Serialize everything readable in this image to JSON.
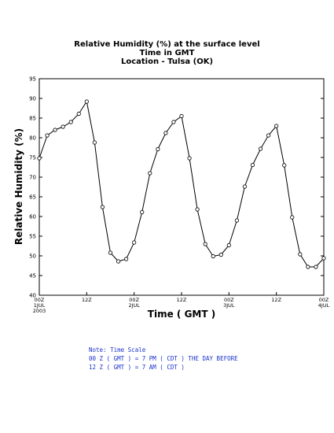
{
  "chart_data": {
    "type": "line",
    "title": "Relative Humidity (%) at the surface level",
    "subtitle": "Time in GMT",
    "location": "Location - Tulsa (OK)",
    "ylabel": "Relative Humidity (%)",
    "xlabel": "Time ( GMT )",
    "ylim": [
      40,
      95
    ],
    "yticks": [
      40,
      45,
      50,
      55,
      60,
      65,
      70,
      75,
      80,
      85,
      90,
      95
    ],
    "xlim_hours": [
      0,
      72
    ],
    "xticks": [
      {
        "hour": 0,
        "label": "00Z",
        "sub": "1JUL",
        "sub2": "2003"
      },
      {
        "hour": 12,
        "label": "12Z",
        "sub": "",
        "sub2": ""
      },
      {
        "hour": 24,
        "label": "00Z",
        "sub": "2JUL",
        "sub2": ""
      },
      {
        "hour": 36,
        "label": "12Z",
        "sub": "",
        "sub2": ""
      },
      {
        "hour": 48,
        "label": "00Z",
        "sub": "3JUL",
        "sub2": ""
      },
      {
        "hour": 60,
        "label": "12Z",
        "sub": "",
        "sub2": ""
      },
      {
        "hour": 72,
        "label": "00Z",
        "sub": "4JUL",
        "sub2": ""
      }
    ],
    "grid": false,
    "series": [
      {
        "x": [
          0,
          2,
          4,
          6,
          8,
          10,
          12,
          14,
          16,
          18,
          20,
          22,
          24,
          26,
          28,
          30,
          32,
          34,
          36,
          38,
          40,
          42,
          44,
          46,
          48,
          50,
          52,
          54,
          56,
          58,
          60,
          62,
          64,
          66,
          68,
          70,
          72
        ],
        "values": [
          74.8,
          80.6,
          82.0,
          82.8,
          84.0,
          86.1,
          89.2,
          78.8,
          62.4,
          50.8,
          48.6,
          49.2,
          53.4,
          61.1,
          71.0,
          77.1,
          81.2,
          84.0,
          85.5,
          74.8,
          61.8,
          53.0,
          49.9,
          50.3,
          52.7,
          59.0,
          67.6,
          73.1,
          77.2,
          80.6,
          83.0,
          73.0,
          59.8,
          50.4,
          47.2,
          47.2,
          49.4
        ]
      }
    ]
  },
  "note": {
    "line1": "Note: Time Scale",
    "line2": "00 Z ( GMT ) = 7 PM ( CDT ) THE DAY BEFORE",
    "line3": "12 Z ( GMT ) = 7 AM ( CDT )"
  },
  "colors": {
    "line": "#000000",
    "note": "#1a33cc"
  }
}
